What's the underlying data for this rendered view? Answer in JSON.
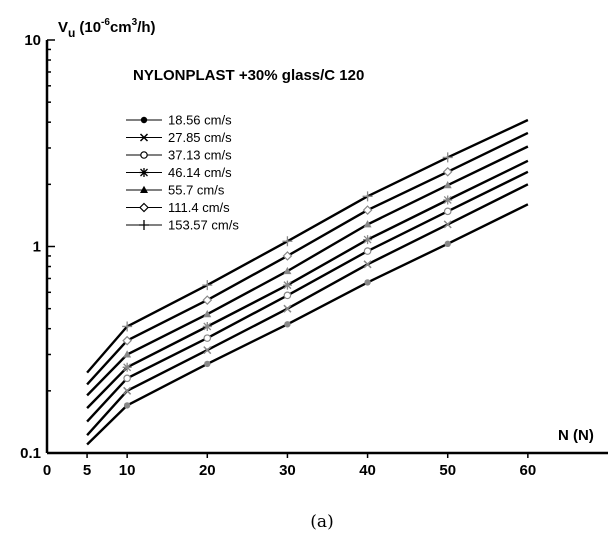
{
  "chart_data": {
    "type": "line",
    "title": "NYLONPLAST +30% glass/C 120",
    "ylabel_base": "V",
    "ylabel_sub": "u",
    "ylabel_unit_pre": "(10",
    "ylabel_unit_exp": "-6",
    "ylabel_unit_mid": "cm",
    "ylabel_unit_exp2": "3",
    "ylabel_unit_post": "/h)",
    "xlabel": "N (N)",
    "caption": "(a)",
    "y_scale": "log",
    "ylim": [
      0.1,
      10
    ],
    "xlim": [
      0,
      70
    ],
    "x_origin_label": "0",
    "x_ticks": [
      5,
      10,
      20,
      30,
      40,
      50,
      60
    ],
    "y_ticks": [
      0.1,
      1,
      10
    ],
    "y_tick_labels": [
      "0.1",
      "1",
      "10"
    ],
    "legend_position": "upper-left",
    "series": [
      {
        "name": "18.56 cm/s",
        "marker": "dot",
        "x": [
          5,
          10,
          20,
          30,
          40,
          50,
          60
        ],
        "y": [
          0.11,
          0.17,
          0.27,
          0.42,
          0.67,
          1.03,
          1.6
        ]
      },
      {
        "name": "27.85 cm/s",
        "marker": "x",
        "x": [
          5,
          10,
          20,
          30,
          40,
          50,
          60
        ],
        "y": [
          0.122,
          0.2,
          0.315,
          0.5,
          0.82,
          1.28,
          2.0
        ]
      },
      {
        "name": "37.13 cm/s",
        "marker": "circle",
        "x": [
          5,
          10,
          20,
          30,
          40,
          50,
          60
        ],
        "y": [
          0.142,
          0.23,
          0.36,
          0.58,
          0.95,
          1.48,
          2.3
        ]
      },
      {
        "name": "46.14 cm/s",
        "marker": "asterisk",
        "x": [
          5,
          10,
          20,
          30,
          40,
          50,
          60
        ],
        "y": [
          0.165,
          0.26,
          0.41,
          0.65,
          1.08,
          1.68,
          2.6
        ]
      },
      {
        "name": "55.7 cm/s",
        "marker": "triangle",
        "x": [
          5,
          10,
          20,
          30,
          40,
          50,
          60
        ],
        "y": [
          0.19,
          0.3,
          0.47,
          0.76,
          1.28,
          1.98,
          3.05
        ]
      },
      {
        "name": "111.4 cm/s",
        "marker": "diamond",
        "x": [
          5,
          10,
          20,
          30,
          40,
          50,
          60
        ],
        "y": [
          0.215,
          0.35,
          0.55,
          0.9,
          1.5,
          2.3,
          3.55
        ]
      },
      {
        "name": "153.57 cm/s",
        "marker": "plus",
        "x": [
          5,
          10,
          20,
          30,
          40,
          50,
          60
        ],
        "y": [
          0.245,
          0.41,
          0.65,
          1.06,
          1.75,
          2.7,
          4.1
        ]
      }
    ]
  }
}
